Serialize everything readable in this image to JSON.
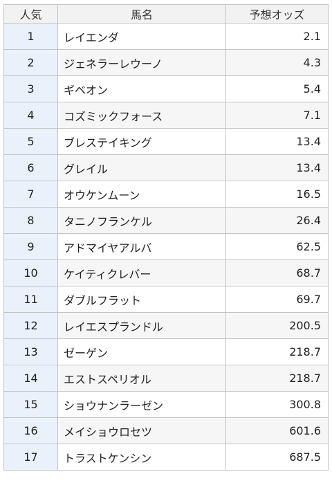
{
  "table": {
    "headers": {
      "rank": "人気",
      "name": "馬名",
      "odds": "予想オッズ"
    },
    "rows": [
      {
        "rank": "1",
        "name": "レイエンダ",
        "odds": "2.1"
      },
      {
        "rank": "2",
        "name": "ジェネラーレウーノ",
        "odds": "4.3"
      },
      {
        "rank": "3",
        "name": "ギベオン",
        "odds": "5.4"
      },
      {
        "rank": "4",
        "name": "コズミックフォース",
        "odds": "7.1"
      },
      {
        "rank": "5",
        "name": "ブレステイキング",
        "odds": "13.4"
      },
      {
        "rank": "6",
        "name": "グレイル",
        "odds": "13.4"
      },
      {
        "rank": "7",
        "name": "オウケンムーン",
        "odds": "16.5"
      },
      {
        "rank": "8",
        "name": "タニノフランケル",
        "odds": "26.4"
      },
      {
        "rank": "9",
        "name": "アドマイヤアルバ",
        "odds": "62.5"
      },
      {
        "rank": "10",
        "name": "ケイティクレバー",
        "odds": "68.7"
      },
      {
        "rank": "11",
        "name": "ダブルフラット",
        "odds": "69.7"
      },
      {
        "rank": "12",
        "name": "レイエスプランドル",
        "odds": "200.5"
      },
      {
        "rank": "13",
        "name": "ゼーゲン",
        "odds": "218.7"
      },
      {
        "rank": "14",
        "name": "エストスペリオル",
        "odds": "218.7"
      },
      {
        "rank": "15",
        "name": "ショウナンラーゼン",
        "odds": "300.8"
      },
      {
        "rank": "16",
        "name": "メイショウロセツ",
        "odds": "601.6"
      },
      {
        "rank": "17",
        "name": "トラストケンシン",
        "odds": "687.5"
      }
    ]
  }
}
